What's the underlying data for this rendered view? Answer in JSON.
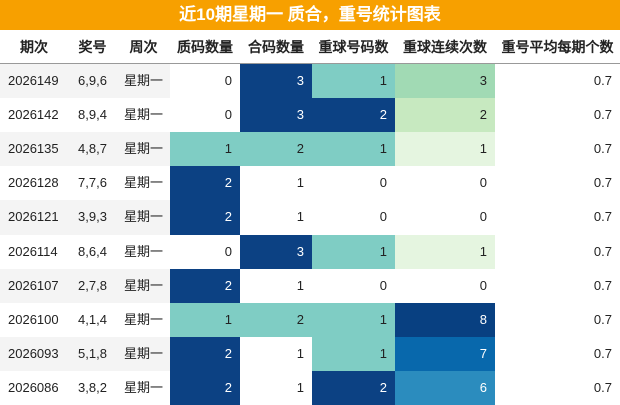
{
  "title": "近10期星期一 质合，重号统计图表",
  "table": {
    "header": [
      "期次",
      "奖号",
      "周次",
      "质码数量",
      "合码数量",
      "重球号码数",
      "重球连续次数",
      "重号平均每期个数"
    ],
    "rows": [
      [
        "2026149",
        "6,9,6",
        "星期一",
        0,
        3,
        1,
        3,
        0.7
      ],
      [
        "2026142",
        "8,9,4",
        "星期一",
        0,
        3,
        2,
        2,
        0.7
      ],
      [
        "2026135",
        "4,8,7",
        "星期一",
        1,
        2,
        1,
        1,
        0.7
      ],
      [
        "2026128",
        "7,7,6",
        "星期一",
        2,
        1,
        0,
        0,
        0.7
      ],
      [
        "2026121",
        "3,9,3",
        "星期一",
        2,
        1,
        0,
        0,
        0.7
      ],
      [
        "2026114",
        "8,6,4",
        "星期一",
        0,
        3,
        1,
        1,
        0.7
      ],
      [
        "2026107",
        "2,7,8",
        "星期一",
        2,
        1,
        0,
        0,
        0.7
      ],
      [
        "2026100",
        "4,1,4",
        "星期一",
        1,
        2,
        1,
        8,
        0.7
      ],
      [
        "2026093",
        "5,1,8",
        "星期一",
        2,
        1,
        1,
        7,
        0.7
      ],
      [
        "2026086",
        "3,8,2",
        "星期一",
        2,
        1,
        2,
        6,
        0.7
      ]
    ],
    "cell_colors": [
      [
        "#ffffff",
        "#0c4183",
        "#7fcdc4",
        "#a1dab4"
      ],
      [
        "#ffffff",
        "#0c4183",
        "#0c4183",
        "#c7e9c0"
      ],
      [
        "#7fcdc4",
        "#7fcdc4",
        "#7fcdc4",
        "#e5f5e0"
      ],
      [
        "#0c4183",
        "#ffffff",
        "#ffffff",
        "#ffffff"
      ],
      [
        "#0c4183",
        "#ffffff",
        "#ffffff",
        "#ffffff"
      ],
      [
        "#ffffff",
        "#0c4183",
        "#7fcdc4",
        "#e5f5e0"
      ],
      [
        "#0c4183",
        "#ffffff",
        "#ffffff",
        "#ffffff"
      ],
      [
        "#7fcdc4",
        "#7fcdc4",
        "#7fcdc4",
        "#084081"
      ],
      [
        "#0c4183",
        "#ffffff",
        "#7fcdc4",
        "#0868ac"
      ],
      [
        "#0c4183",
        "#ffffff",
        "#0c4183",
        "#2b8cbe"
      ]
    ]
  }
}
